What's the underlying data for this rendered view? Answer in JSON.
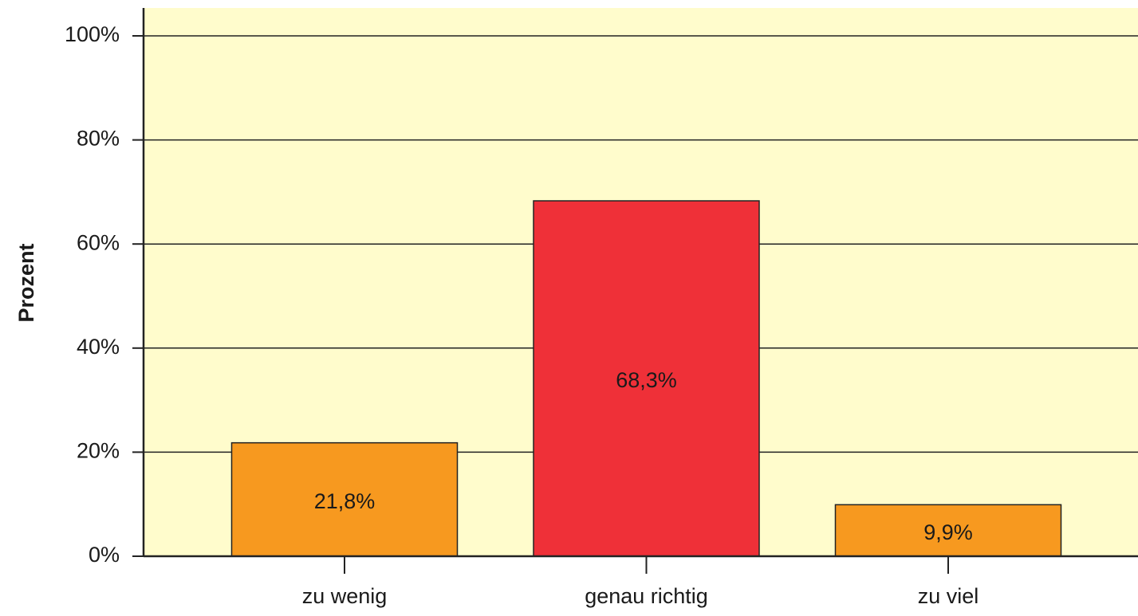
{
  "chart_data": {
    "type": "bar",
    "ylabel": "Prozent",
    "categories": [
      "zu wenig",
      "genau richtig",
      "zu viel"
    ],
    "values": [
      21.8,
      68.3,
      9.9
    ],
    "value_labels": [
      "21,8%",
      "68,3%",
      "9,9%"
    ],
    "colors": [
      "#f7991f",
      "#ef3038",
      "#f7991f"
    ],
    "ylim": [
      0,
      100
    ],
    "yticks": [
      {
        "value": 0,
        "label": "0%"
      },
      {
        "value": 20,
        "label": "20%"
      },
      {
        "value": 40,
        "label": "40%"
      },
      {
        "value": 60,
        "label": "60%"
      },
      {
        "value": 80,
        "label": "80%"
      },
      {
        "value": 100,
        "label": "100%"
      }
    ],
    "grid": true
  }
}
